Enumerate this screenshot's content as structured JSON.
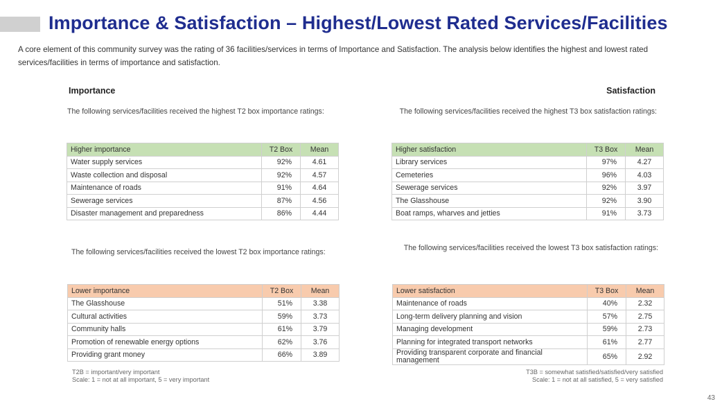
{
  "title": "Importance & Satisfaction – Highest/Lowest Rated Services/Facilities",
  "intro": "A core element of this community survey was the rating of 36 facilities/services in terms of Importance and Satisfaction. The analysis below identifies the highest and lowest rated services/facilities in terms of importance and satisfaction.",
  "importance": {
    "heading": "Importance",
    "high_desc": "The following services/facilities received the highest T2 box importance ratings:",
    "low_desc": "The following services/facilities received the lowest T2 box importance ratings:",
    "high_table": {
      "headers": [
        "Higher importance",
        "T2 Box",
        "Mean"
      ],
      "rows": [
        [
          "Water supply services",
          "92%",
          "4.61"
        ],
        [
          "Waste collection and disposal",
          "92%",
          "4.57"
        ],
        [
          "Maintenance of roads",
          "91%",
          "4.64"
        ],
        [
          "Sewerage services",
          "87%",
          "4.56"
        ],
        [
          "Disaster management and preparedness",
          "86%",
          "4.44"
        ]
      ]
    },
    "low_table": {
      "headers": [
        "Lower importance",
        "T2 Box",
        "Mean"
      ],
      "rows": [
        [
          "The Glasshouse",
          "51%",
          "3.38"
        ],
        [
          "Cultural activities",
          "59%",
          "3.73"
        ],
        [
          "Community halls",
          "61%",
          "3.79"
        ],
        [
          "Promotion of renewable energy options",
          "62%",
          "3.76"
        ],
        [
          "Providing grant money",
          "66%",
          "3.89"
        ]
      ]
    },
    "note_1": "T2B = important/very important",
    "note_2": "Scale: 1 = not at all important, 5 = very important"
  },
  "satisfaction": {
    "heading": "Satisfaction",
    "high_desc": "The following services/facilities received the highest T3 box satisfaction ratings:",
    "low_desc": "The following services/facilities received the lowest T3 box satisfaction ratings:",
    "high_table": {
      "headers": [
        "Higher satisfaction",
        "T3 Box",
        "Mean"
      ],
      "rows": [
        [
          "Library services",
          "97%",
          "4.27"
        ],
        [
          "Cemeteries",
          "96%",
          "4.03"
        ],
        [
          "Sewerage services",
          "92%",
          "3.97"
        ],
        [
          "The Glasshouse",
          "92%",
          "3.90"
        ],
        [
          "Boat ramps, wharves and jetties",
          "91%",
          "3.73"
        ]
      ]
    },
    "low_table": {
      "headers": [
        "Lower satisfaction",
        "T3 Box",
        "Mean"
      ],
      "rows": [
        [
          "Maintenance of roads",
          "40%",
          "2.32"
        ],
        [
          "Long-term delivery planning and vision",
          "57%",
          "2.75"
        ],
        [
          "Managing development",
          "59%",
          "2.73"
        ],
        [
          "Planning for integrated transport networks",
          "61%",
          "2.77"
        ],
        [
          "Providing transparent corporate and financial management",
          "65%",
          "2.92"
        ]
      ]
    },
    "note_1": "T3B = somewhat satisfied/satisfied/very satisfied",
    "note_2": "Scale: 1 = not at all satisfied, 5 = very satisfied"
  },
  "page_number": "43",
  "colors": {
    "title": "#1f2d8f",
    "green_header": "#c6e0b4",
    "orange_header": "#f8cbad"
  }
}
